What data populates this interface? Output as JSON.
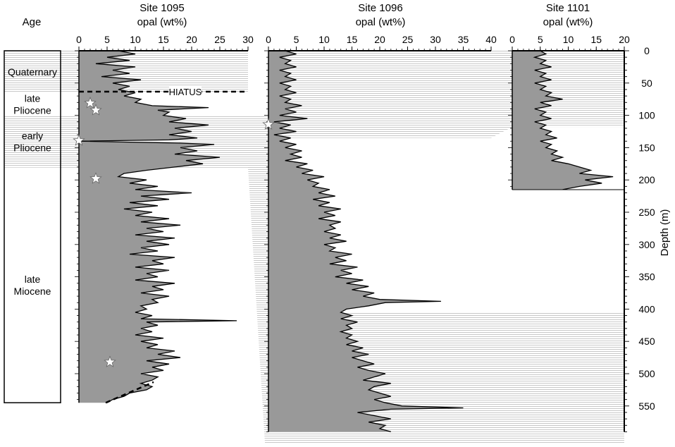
{
  "age_column": {
    "title": "Age",
    "units": [
      {
        "label_lines": [
          "Quaternary"
        ],
        "top": 0,
        "bottom": 65,
        "shaded": true
      },
      {
        "label_lines": [
          "late",
          "Pliocene"
        ],
        "top": 65,
        "bottom": 101,
        "shaded": false
      },
      {
        "label_lines": [
          "early",
          "Pliocene"
        ],
        "top": 101,
        "bottom": 181,
        "shaded": true
      },
      {
        "label_lines": [
          "late",
          "Miocene"
        ],
        "top": 181,
        "bottom": 545,
        "shaded": false
      }
    ]
  },
  "hiatus": {
    "label": "HIATUS",
    "depth": 65
  },
  "colors": {
    "profile_fill": "#999999",
    "stipple": "#c8c8c8",
    "line": "#000000",
    "star_fill": "#ffffff"
  },
  "chart_data": [
    {
      "type": "area",
      "title": "Site 1095",
      "xlabel": "opal (wt%)",
      "ylabel": "Depth (m)",
      "xlim": [
        0,
        30
      ],
      "ylim": [
        0,
        590
      ],
      "xticks": [
        0,
        5,
        10,
        15,
        20,
        25,
        30
      ],
      "y_reversed": true,
      "series": [
        {
          "depth": [
            0,
            5,
            10,
            15,
            20,
            25,
            30,
            35,
            40,
            45,
            50,
            55,
            60,
            65,
            70,
            75,
            80,
            85,
            88,
            92,
            95,
            100,
            105,
            110,
            115,
            120,
            125,
            130,
            135,
            138,
            140,
            143,
            145,
            150,
            155,
            160,
            165,
            170,
            175,
            180,
            185,
            190,
            195,
            200,
            205,
            210,
            215,
            220,
            225,
            230,
            235,
            240,
            245,
            250,
            255,
            260,
            265,
            270,
            275,
            280,
            285,
            290,
            295,
            300,
            305,
            310,
            315,
            320,
            325,
            330,
            335,
            340,
            345,
            350,
            355,
            360,
            365,
            370,
            375,
            380,
            385,
            390,
            395,
            400,
            405,
            410,
            415,
            418,
            420,
            425,
            430,
            435,
            440,
            445,
            450,
            455,
            460,
            465,
            470,
            475,
            480,
            485,
            490,
            495,
            500,
            505,
            510,
            515,
            520,
            525,
            530,
            535,
            540,
            545
          ],
          "opal": [
            7,
            10,
            5,
            9,
            3,
            10,
            6,
            9,
            4,
            11,
            6,
            9,
            7,
            10,
            8,
            11,
            10,
            13,
            23,
            14,
            16,
            15,
            19,
            16,
            23,
            17,
            20,
            16,
            21,
            16,
            0,
            18,
            24,
            18,
            21,
            17,
            25,
            19,
            22,
            17,
            12,
            8,
            7,
            12,
            9,
            14,
            10,
            20,
            11,
            16,
            9,
            14,
            8,
            13,
            10,
            16,
            11,
            18,
            12,
            15,
            10,
            17,
            12,
            16,
            11,
            14,
            9,
            17,
            13,
            15,
            10,
            16,
            12,
            14,
            10,
            17,
            13,
            15,
            11,
            16,
            13,
            14,
            11,
            12,
            10,
            13,
            11,
            28,
            12,
            14,
            11,
            13,
            10,
            15,
            11,
            14,
            12,
            17,
            14,
            18,
            12,
            16,
            13,
            15,
            11,
            14,
            13,
            11,
            13,
            12,
            9,
            8,
            6,
            5
          ]
        }
      ],
      "markers": [
        {
          "depth": 81,
          "opal": 2
        },
        {
          "depth": 92,
          "opal": 3
        },
        {
          "depth": 139,
          "opal": 0
        },
        {
          "depth": 198,
          "opal": 3
        },
        {
          "depth": 482,
          "opal": 5.5
        }
      ],
      "marker_symbol": "star"
    },
    {
      "type": "area",
      "title": "Site 1096",
      "xlabel": "opal (wt%)",
      "xlim": [
        0,
        40
      ],
      "ylim": [
        0,
        590
      ],
      "xticks": [
        0,
        5,
        10,
        15,
        20,
        25,
        30,
        35,
        40
      ],
      "y_reversed": true,
      "series": [
        {
          "depth": [
            0,
            5,
            10,
            15,
            20,
            25,
            30,
            35,
            40,
            45,
            50,
            55,
            60,
            65,
            70,
            75,
            80,
            85,
            90,
            95,
            100,
            105,
            110,
            115,
            120,
            125,
            130,
            135,
            140,
            145,
            150,
            155,
            160,
            165,
            170,
            175,
            180,
            185,
            190,
            195,
            200,
            205,
            210,
            215,
            220,
            225,
            230,
            235,
            240,
            245,
            250,
            255,
            260,
            265,
            270,
            275,
            280,
            285,
            290,
            295,
            300,
            305,
            310,
            315,
            320,
            325,
            330,
            335,
            340,
            345,
            350,
            355,
            360,
            365,
            370,
            375,
            380,
            385,
            388,
            390,
            395,
            400,
            405,
            410,
            415,
            420,
            425,
            430,
            435,
            440,
            445,
            450,
            455,
            460,
            465,
            470,
            475,
            480,
            485,
            490,
            495,
            500,
            505,
            510,
            515,
            520,
            525,
            530,
            535,
            540,
            545,
            550,
            553,
            555,
            560,
            565,
            570,
            575,
            580,
            585,
            590
          ],
          "opal": [
            3,
            5,
            2,
            4,
            3,
            5,
            2,
            4,
            3,
            5,
            2,
            4,
            3,
            5,
            2,
            4,
            3,
            6,
            3,
            5,
            2,
            7,
            1,
            4,
            2,
            5,
            1,
            4,
            2,
            5,
            3,
            6,
            4,
            6,
            3,
            7,
            5,
            8,
            6,
            10,
            7,
            9,
            8,
            11,
            9,
            12,
            8,
            11,
            9,
            13,
            10,
            12,
            9,
            13,
            11,
            12,
            10,
            13,
            11,
            14,
            10,
            12,
            11,
            15,
            12,
            14,
            11,
            16,
            13,
            15,
            12,
            17,
            14,
            18,
            15,
            19,
            17,
            20,
            31,
            21,
            18,
            14,
            13,
            15,
            13,
            16,
            14,
            15,
            13,
            15,
            14,
            16,
            14,
            17,
            15,
            18,
            15,
            17,
            19,
            16,
            18,
            21,
            19,
            17,
            22,
            19,
            18,
            20,
            22,
            19,
            21,
            24,
            35,
            22,
            16,
            19,
            22,
            18,
            21,
            20,
            22
          ]
        }
      ],
      "markers": [
        {
          "depth": 114,
          "opal": 0
        }
      ],
      "marker_symbol": "star"
    },
    {
      "type": "area",
      "title": "Site 1101",
      "xlabel": "opal (wt%)",
      "xlim": [
        0,
        20
      ],
      "ylim": [
        0,
        590
      ],
      "xticks": [
        0,
        5,
        10,
        15,
        20
      ],
      "yticks": [
        0,
        50,
        100,
        150,
        200,
        250,
        300,
        350,
        400,
        450,
        500,
        550
      ],
      "y_reversed": true,
      "series": [
        {
          "depth": [
            0,
            5,
            10,
            15,
            20,
            25,
            30,
            35,
            40,
            45,
            50,
            55,
            60,
            65,
            70,
            75,
            80,
            85,
            90,
            95,
            100,
            105,
            110,
            115,
            120,
            125,
            130,
            135,
            140,
            145,
            150,
            155,
            160,
            165,
            170,
            175,
            180,
            185,
            190,
            195,
            200,
            205,
            210,
            215
          ],
          "opal": [
            5,
            6,
            4,
            6,
            5,
            7,
            4,
            6,
            5,
            7,
            4,
            6,
            5,
            7,
            6,
            9,
            5,
            7,
            4,
            6,
            5,
            7,
            4,
            6,
            5,
            7,
            6,
            8,
            5,
            7,
            6,
            8,
            7,
            9,
            7,
            10,
            12,
            14,
            12,
            18,
            13,
            16,
            12,
            9
          ]
        }
      ]
    }
  ]
}
